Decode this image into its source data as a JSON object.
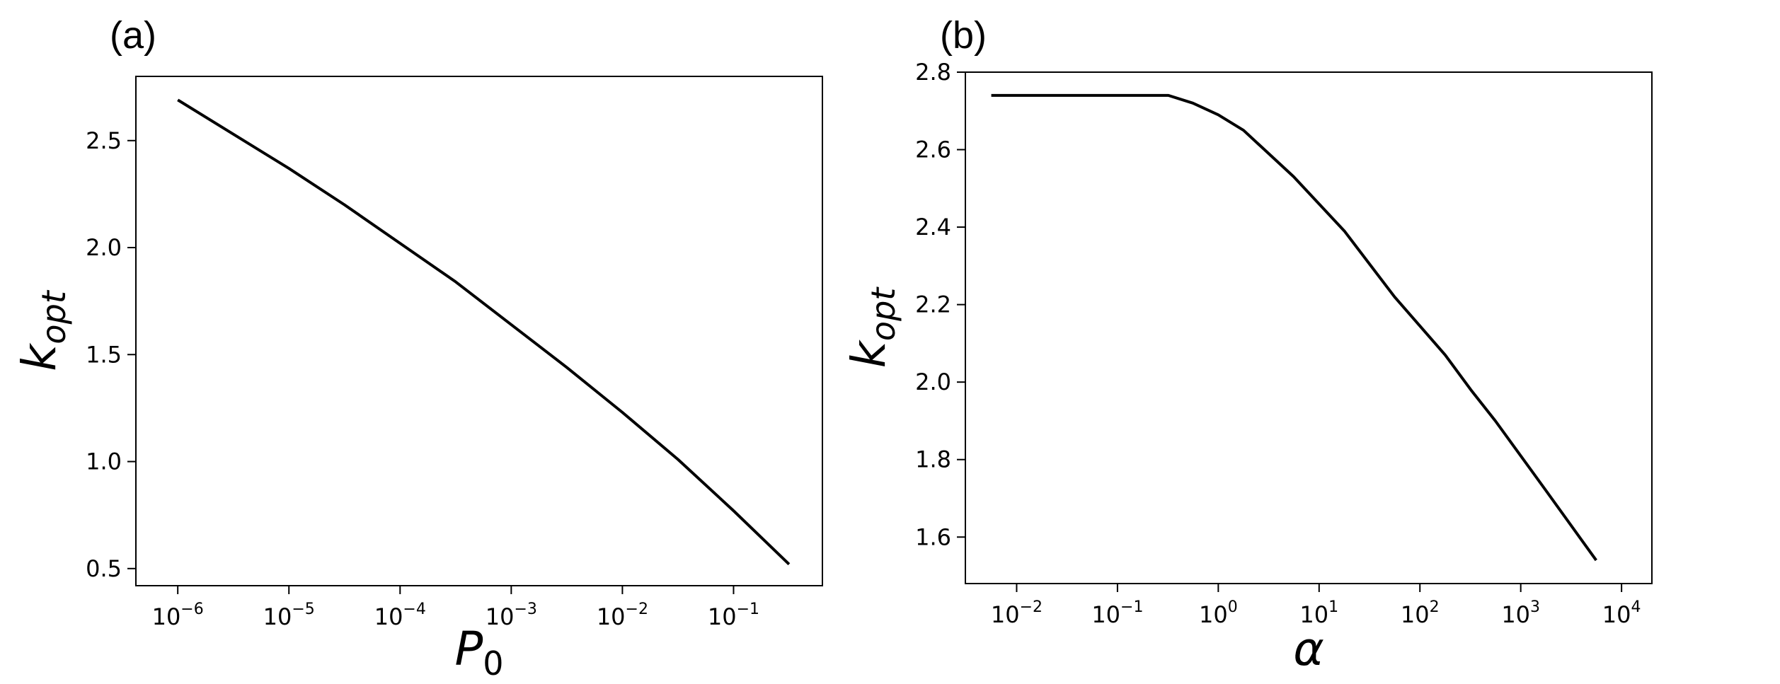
{
  "chart_data": [
    {
      "type": "line",
      "panel_label": "(a)",
      "xlabel": "P",
      "xlabel_sub": "0",
      "ylabel": "k",
      "ylabel_sub": "opt",
      "xscale": "log",
      "xlim": [
        4.2e-07,
        0.63
      ],
      "ylim": [
        0.42,
        2.8
      ],
      "xticks": [
        {
          "value": 1e-06,
          "base": "10",
          "exp": "−6"
        },
        {
          "value": 1e-05,
          "base": "10",
          "exp": "−5"
        },
        {
          "value": 0.0001,
          "base": "10",
          "exp": "−4"
        },
        {
          "value": 0.001,
          "base": "10",
          "exp": "−3"
        },
        {
          "value": 0.01,
          "base": "10",
          "exp": "−2"
        },
        {
          "value": 0.1,
          "base": "10",
          "exp": "−1"
        }
      ],
      "yticks": [
        {
          "value": 0.5,
          "label": "0.5"
        },
        {
          "value": 1.0,
          "label": "1.0"
        },
        {
          "value": 1.5,
          "label": "1.5"
        },
        {
          "value": 2.0,
          "label": "2.0"
        },
        {
          "value": 2.5,
          "label": "2.5"
        }
      ],
      "grid": false,
      "series": [
        {
          "color": "#000000",
          "x": [
            1e-06,
            3.16e-06,
            1e-05,
            3.16e-05,
            0.0001,
            0.000316,
            0.001,
            0.00316,
            0.01,
            0.0316,
            0.1,
            0.316
          ],
          "y": [
            2.69,
            2.53,
            2.37,
            2.2,
            2.02,
            1.84,
            1.64,
            1.44,
            1.23,
            1.01,
            0.77,
            0.52
          ]
        }
      ]
    },
    {
      "type": "line",
      "panel_label": "(b)",
      "xlabel": "α",
      "xlabel_sub": "",
      "ylabel": "k",
      "ylabel_sub": "opt",
      "xscale": "log",
      "xlim": [
        0.0031,
        20000
      ],
      "ylim": [
        1.48,
        2.8
      ],
      "xticks": [
        {
          "value": 0.01,
          "base": "10",
          "exp": "−2"
        },
        {
          "value": 0.1,
          "base": "10",
          "exp": "−1"
        },
        {
          "value": 1,
          "base": "10",
          "exp": "0"
        },
        {
          "value": 10,
          "base": "10",
          "exp": "1"
        },
        {
          "value": 100,
          "base": "10",
          "exp": "2"
        },
        {
          "value": 1000,
          "base": "10",
          "exp": "3"
        },
        {
          "value": 10000,
          "base": "10",
          "exp": "4"
        }
      ],
      "yticks": [
        {
          "value": 1.6,
          "label": "1.6"
        },
        {
          "value": 1.8,
          "label": "1.8"
        },
        {
          "value": 2.0,
          "label": "2.0"
        },
        {
          "value": 2.2,
          "label": "2.2"
        },
        {
          "value": 2.4,
          "label": "2.4"
        },
        {
          "value": 2.6,
          "label": "2.6"
        },
        {
          "value": 2.8,
          "label": "2.8"
        }
      ],
      "grid": false,
      "series": [
        {
          "color": "#000000",
          "x": [
            0.0056,
            0.03,
            0.1,
            0.32,
            0.56,
            1.0,
            1.78,
            5.6,
            17.8,
            56,
            178,
            320,
            560,
            1780,
            5600
          ],
          "y": [
            2.74,
            2.74,
            2.74,
            2.74,
            2.72,
            2.69,
            2.65,
            2.53,
            2.39,
            2.22,
            2.07,
            1.98,
            1.9,
            1.72,
            1.54
          ]
        }
      ]
    }
  ]
}
